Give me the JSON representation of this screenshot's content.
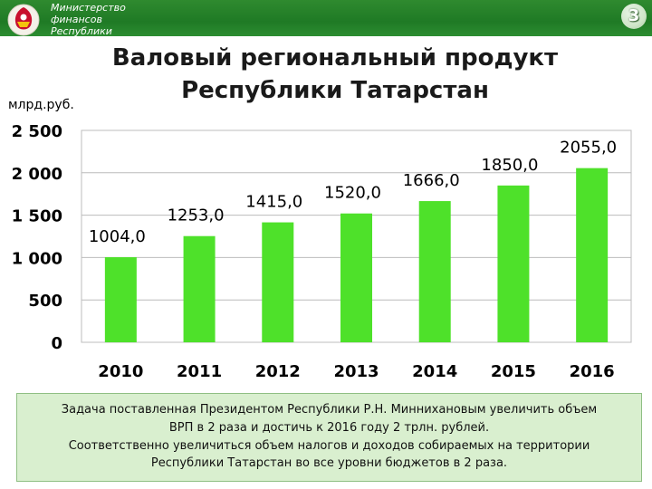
{
  "header": {
    "ministry_lines": [
      "Министерство",
      "финансов",
      "Республики"
    ],
    "page_number": "3",
    "colors": {
      "bar": "#1f7a25",
      "accent": "#2c8d31"
    }
  },
  "slide": {
    "title_lines": [
      "Валовый региональный продукт",
      "Республики Татарстан"
    ],
    "unit": "млрд.руб."
  },
  "chart_data": {
    "type": "bar",
    "categories": [
      "2010",
      "2011",
      "2012",
      "2013",
      "2014",
      "2015",
      "2016"
    ],
    "values": [
      1004.0,
      1253.0,
      1415.0,
      1520.0,
      1666.0,
      1850.0,
      2055.0
    ],
    "data_labels": [
      "1004,0",
      "1253,0",
      "1415,0",
      "1520,0",
      "1666,0",
      "1850,0",
      "2055,0"
    ],
    "y_ticks": [
      0,
      500,
      1000,
      1500,
      2000,
      2500
    ],
    "y_tick_labels": [
      "0",
      "500",
      "1 000",
      "1 500",
      "2 000",
      "2 500"
    ],
    "ylim": [
      0,
      2500
    ],
    "ylabel": "млрд.руб.",
    "grid": true,
    "bar_color": "#4ee12a",
    "grid_color": "#bcbcbc"
  },
  "note": {
    "lines": [
      "Задача поставленная Президентом Республики  Р.Н. Минниханoвым увеличить объем",
      "ВРП в 2 раза и достичь к 2016 году 2 трлн. рублей.",
      "Соответственно увеличиться объем налогов и доходов собираемых на территории",
      "Республики Татарстан во все уровни бюджетов в 2 раза."
    ]
  }
}
